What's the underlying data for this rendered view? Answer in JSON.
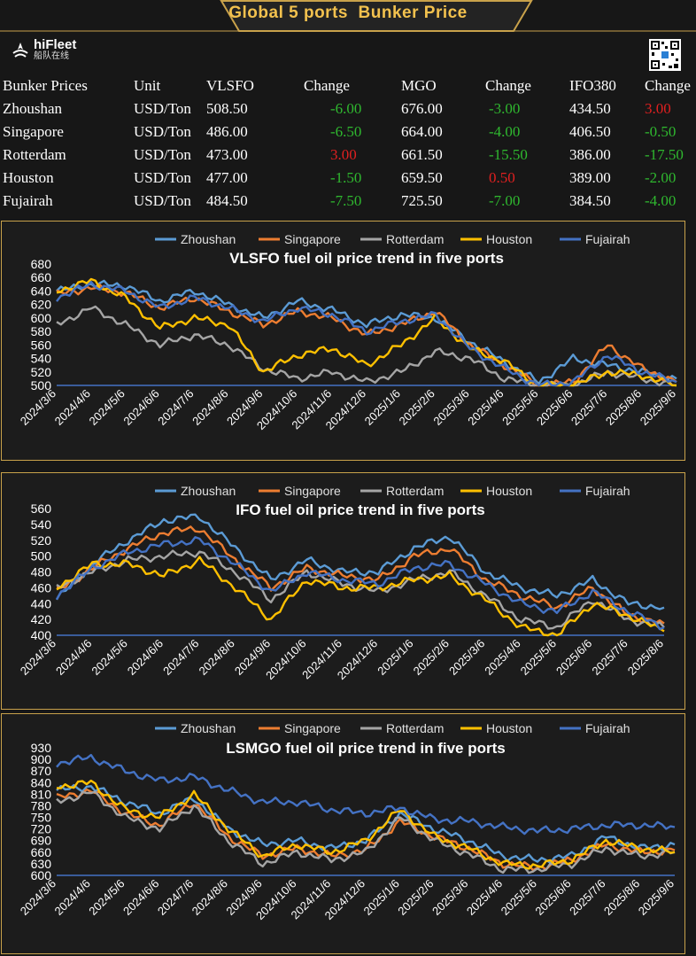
{
  "header": {
    "title": "Global 5 ports  Bunker Price"
  },
  "logo": {
    "brand": "hiFleet",
    "sub": "船队在线",
    "icon": "hifleet-logo"
  },
  "qr": {
    "icon": "qr-code-icon"
  },
  "colors": {
    "up": "#e02020",
    "down": "#2fb82f",
    "accent": "#f2c14e",
    "border": "#c9a24b"
  },
  "table": {
    "headers": [
      "Bunker Prices",
      "Unit",
      "VLSFO",
      "Change",
      "MGO",
      "Change",
      "IFO380",
      "Change"
    ],
    "rows": [
      {
        "port": "Zhoushan",
        "unit": "USD/Ton",
        "vlsfo": "508.50",
        "vlsfo_change": "-6.00",
        "mgo": "676.00",
        "mgo_change": "-3.00",
        "ifo": "434.50",
        "ifo_change": "3.00"
      },
      {
        "port": "Singapore",
        "unit": "USD/Ton",
        "vlsfo": "486.00",
        "vlsfo_change": "-6.50",
        "mgo": "664.00",
        "mgo_change": "-4.00",
        "ifo": "406.50",
        "ifo_change": "-0.50"
      },
      {
        "port": "Rotterdam",
        "unit": "USD/Ton",
        "vlsfo": "473.00",
        "vlsfo_change": "3.00",
        "mgo": "661.50",
        "mgo_change": "-15.50",
        "ifo": "386.00",
        "ifo_change": "-17.50"
      },
      {
        "port": "Houston",
        "unit": "USD/Ton",
        "vlsfo": "477.00",
        "vlsfo_change": "-1.50",
        "mgo": "659.50",
        "mgo_change": "0.50",
        "ifo": "389.00",
        "ifo_change": "-2.00"
      },
      {
        "port": "Fujairah",
        "unit": "USD/Ton",
        "vlsfo": "484.50",
        "vlsfo_change": "-7.50",
        "mgo": "725.50",
        "mgo_change": "-7.00",
        "ifo": "384.50",
        "ifo_change": "-4.00"
      }
    ]
  },
  "chart_data": [
    {
      "type": "line",
      "title": "VLSFO fuel oil price trend in five ports",
      "ylim": [
        500,
        680
      ],
      "yticks": [
        500,
        520,
        540,
        560,
        580,
        600,
        620,
        640,
        660,
        680
      ],
      "categories": [
        "2024/3/6",
        "2024/4/6",
        "2024/5/6",
        "2024/6/6",
        "2024/7/6",
        "2024/8/6",
        "2024/9/6",
        "2024/10/6",
        "2024/11/6",
        "2024/12/6",
        "2025/1/6",
        "2025/2/6",
        "2025/3/6",
        "2025/4/6",
        "2025/5/6",
        "2025/6/6",
        "2025/7/6",
        "2025/8/6",
        "2025/9/6"
      ],
      "legend_position": "top",
      "series": [
        {
          "name": "Zhoushan",
          "color": "#5b9bd5",
          "values": [
            640,
            650,
            648,
            625,
            640,
            620,
            600,
            625,
            612,
            590,
            605,
            600,
            565,
            535,
            505,
            540,
            530,
            520,
            510
          ]
        },
        {
          "name": "Singapore",
          "color": "#ed7d31",
          "values": [
            635,
            645,
            638,
            615,
            630,
            610,
            590,
            610,
            600,
            575,
            590,
            610,
            560,
            530,
            500,
            505,
            560,
            525,
            505
          ]
        },
        {
          "name": "Rotterdam",
          "color": "#a5a5a5",
          "values": [
            590,
            615,
            590,
            560,
            575,
            560,
            525,
            510,
            520,
            505,
            520,
            550,
            540,
            510,
            500,
            500,
            520,
            510,
            500
          ]
        },
        {
          "name": "Houston",
          "color": "#ffc000",
          "values": [
            640,
            655,
            630,
            585,
            600,
            590,
            520,
            545,
            555,
            530,
            560,
            600,
            555,
            535,
            500,
            500,
            520,
            515,
            500
          ]
        },
        {
          "name": "Fujairah",
          "color": "#4472c4",
          "values": [
            630,
            650,
            640,
            615,
            630,
            615,
            595,
            615,
            605,
            580,
            595,
            605,
            555,
            525,
            500,
            505,
            545,
            520,
            505
          ]
        }
      ]
    },
    {
      "type": "line",
      "title": "IFO fuel oil price trend in five ports",
      "ylim": [
        400,
        560
      ],
      "yticks": [
        400,
        420,
        440,
        460,
        480,
        500,
        520,
        540,
        560
      ],
      "categories": [
        "2024/3/6",
        "2024/4/6",
        "2024/5/6",
        "2024/6/6",
        "2024/7/6",
        "2024/8/6",
        "2024/9/6",
        "2024/10/6",
        "2024/11/6",
        "2024/12/6",
        "2025/1/6",
        "2025/2/6",
        "2025/3/6",
        "2025/4/6",
        "2025/5/6",
        "2025/6/6",
        "2025/7/6",
        "2025/8/6"
      ],
      "legend_position": "top",
      "series": [
        {
          "name": "Zhoushan",
          "color": "#5b9bd5",
          "values": [
            445,
            490,
            520,
            545,
            550,
            510,
            470,
            495,
            480,
            480,
            510,
            525,
            480,
            460,
            450,
            470,
            440,
            435
          ]
        },
        {
          "name": "Singapore",
          "color": "#ed7d31",
          "values": [
            455,
            485,
            510,
            530,
            535,
            495,
            460,
            485,
            475,
            470,
            500,
            510,
            470,
            450,
            435,
            460,
            425,
            415
          ]
        },
        {
          "name": "Rotterdam",
          "color": "#a5a5a5",
          "values": [
            460,
            480,
            495,
            500,
            505,
            480,
            445,
            480,
            465,
            455,
            470,
            480,
            450,
            420,
            410,
            445,
            420,
            410
          ]
        },
        {
          "name": "Houston",
          "color": "#ffc000",
          "values": [
            460,
            490,
            490,
            475,
            495,
            460,
            420,
            470,
            460,
            460,
            470,
            475,
            445,
            410,
            400,
            440,
            425,
            405
          ]
        },
        {
          "name": "Fujairah",
          "color": "#4472c4",
          "values": [
            450,
            485,
            505,
            515,
            520,
            490,
            455,
            480,
            470,
            465,
            485,
            490,
            465,
            440,
            430,
            455,
            430,
            410
          ]
        }
      ]
    },
    {
      "type": "line",
      "title": "LSMGO fuel oil price trend in five ports",
      "ylim": [
        600,
        930
      ],
      "yticks": [
        600,
        630,
        660,
        690,
        720,
        750,
        780,
        810,
        840,
        870,
        900,
        930
      ],
      "categories": [
        "2024/3/6",
        "2024/4/6",
        "2024/5/6",
        "2024/6/6",
        "2024/7/6",
        "2024/8/6",
        "2024/9/6",
        "2024/10/6",
        "2024/11/6",
        "2024/12/6",
        "2025/1/6",
        "2025/2/6",
        "2025/3/6",
        "2025/4/6",
        "2025/5/6",
        "2025/6/6",
        "2025/7/6",
        "2025/8/6",
        "2025/9/6"
      ],
      "legend_position": "top",
      "series": [
        {
          "name": "Zhoushan",
          "color": "#5b9bd5",
          "values": [
            820,
            830,
            790,
            760,
            800,
            720,
            680,
            690,
            670,
            690,
            760,
            720,
            690,
            650,
            640,
            650,
            700,
            670,
            680
          ]
        },
        {
          "name": "Singapore",
          "color": "#ed7d31",
          "values": [
            800,
            820,
            760,
            730,
            790,
            700,
            650,
            670,
            650,
            665,
            740,
            700,
            670,
            630,
            620,
            640,
            680,
            660,
            665
          ]
        },
        {
          "name": "Rotterdam",
          "color": "#a5a5a5",
          "values": [
            790,
            815,
            750,
            720,
            780,
            690,
            630,
            660,
            640,
            660,
            750,
            690,
            655,
            615,
            615,
            630,
            670,
            650,
            660
          ]
        },
        {
          "name": "Houston",
          "color": "#ffc000",
          "values": [
            830,
            840,
            770,
            750,
            810,
            720,
            650,
            680,
            660,
            690,
            770,
            700,
            670,
            630,
            625,
            640,
            690,
            670,
            660
          ]
        },
        {
          "name": "Fujairah",
          "color": "#4472c4",
          "values": [
            890,
            905,
            870,
            845,
            855,
            820,
            790,
            790,
            770,
            760,
            775,
            745,
            740,
            725,
            715,
            720,
            730,
            730,
            725
          ]
        }
      ]
    }
  ]
}
